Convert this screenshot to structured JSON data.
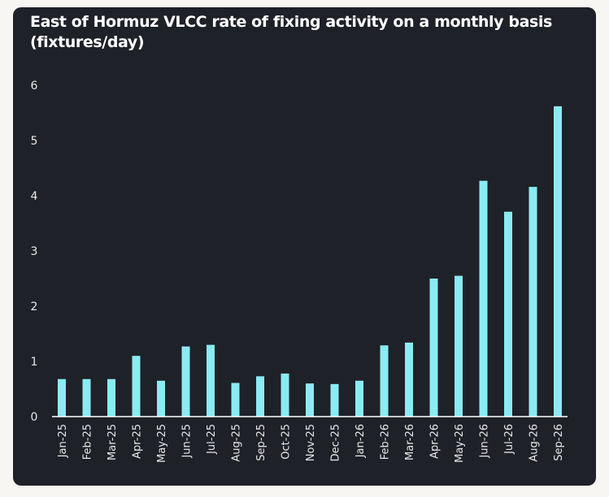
{
  "chart_data": {
    "type": "bar",
    "title": "East of Hormuz VLCC rate of fixing activity on a monthly basis (fixtures/day)",
    "xlabel": "",
    "ylabel": "",
    "categories": [
      "Jan-25",
      "Feb-25",
      "Mar-25",
      "Apr-25",
      "May-25",
      "Jun-25",
      "Jul-25",
      "Aug-25",
      "Sep-25",
      "Oct-25",
      "Nov-25",
      "Dec-25",
      "Jan-26",
      "Feb-26",
      "Mar-26",
      "Apr-26",
      "May-26",
      "Jun-26",
      "Jul-26",
      "Aug-26",
      "Sep-26"
    ],
    "values": [
      0.68,
      0.68,
      0.68,
      1.1,
      0.65,
      1.27,
      1.3,
      0.61,
      0.73,
      0.78,
      0.6,
      0.59,
      0.65,
      1.29,
      1.34,
      2.5,
      2.55,
      4.27,
      3.71,
      4.16,
      5.62
    ],
    "yticks": [
      0,
      1,
      2,
      3,
      4,
      5,
      6
    ],
    "ylim": [
      0,
      6
    ],
    "grid": false,
    "legend": "none",
    "bar_color": "#8aebf3",
    "background": "#1f2128"
  }
}
